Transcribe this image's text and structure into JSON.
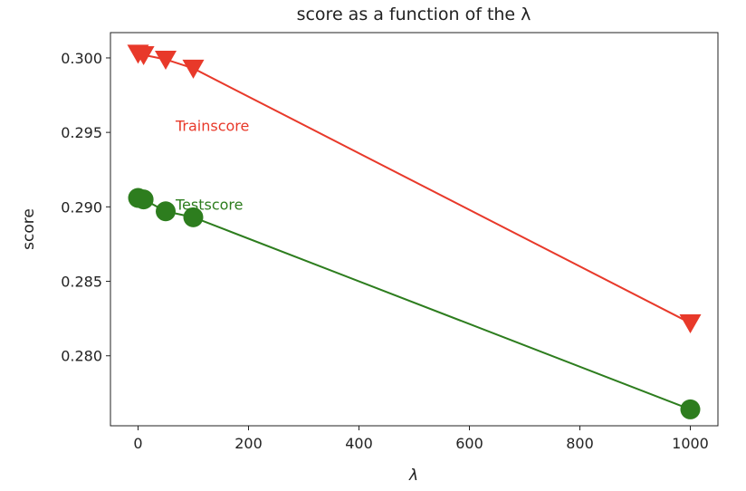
{
  "chart_data": {
    "type": "line",
    "title": "score as a function of the λ",
    "xlabel": "λ",
    "ylabel": "score",
    "xlim": [
      -50,
      1050
    ],
    "ylim": [
      0.2753,
      0.3017
    ],
    "xticks": [
      0,
      200,
      400,
      600,
      800,
      1000
    ],
    "xtick_labels": [
      "0",
      "200",
      "400",
      "600",
      "800",
      "1000"
    ],
    "yticks": [
      0.28,
      0.285,
      0.29,
      0.295,
      0.3
    ],
    "ytick_labels": [
      "0.280",
      "0.285",
      "0.290",
      "0.295",
      "0.300"
    ],
    "grid": false,
    "series": [
      {
        "color": "#e8392a",
        "marker": "triangle-down",
        "x": [
          0,
          10,
          50,
          100,
          1000
        ],
        "y": [
          0.3003,
          0.3002,
          0.2999,
          0.2993,
          0.2822
        ]
      },
      {
        "color": "#2d7d1e",
        "marker": "circle",
        "x": [
          0,
          10,
          50,
          100,
          1000
        ],
        "y": [
          0.2906,
          0.2905,
          0.2897,
          0.2893,
          0.2764
        ]
      }
    ],
    "annotations": [
      {
        "text": "Trainscore",
        "x": 68,
        "y": 0.2951,
        "color": "#e8392a"
      },
      {
        "text": "Testscore",
        "x": 68,
        "y": 0.2898,
        "color": "#2d7d1e"
      }
    ]
  }
}
